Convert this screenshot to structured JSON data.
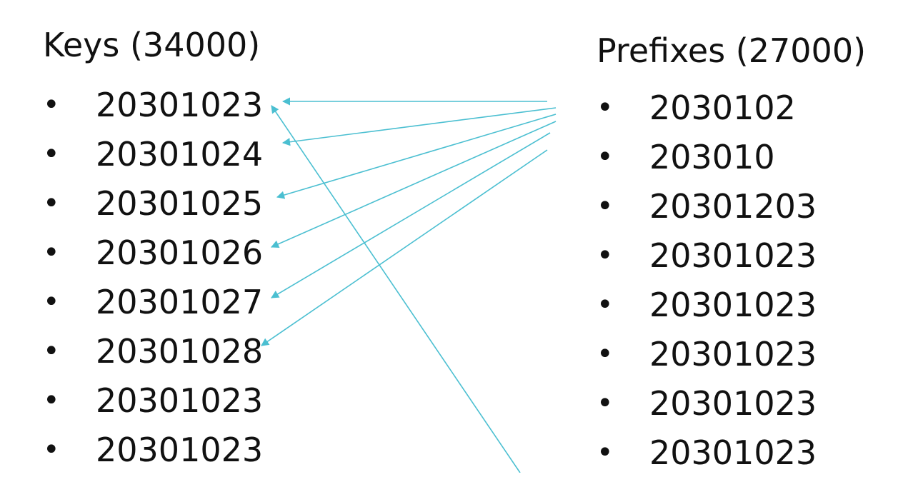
{
  "keys": {
    "title": "Keys (34000)",
    "items": [
      "20301023",
      "20301024",
      "20301025",
      "20301026",
      "20301027",
      "20301028",
      "20301023",
      "20301023"
    ]
  },
  "prefixes": {
    "title": "Prefixes (27000)",
    "items": [
      "2030102",
      "203010",
      "20301203",
      "20301023",
      "20301023",
      "20301023",
      "20301023",
      "20301023"
    ]
  },
  "bullet_glyph": "•",
  "arrow_color": "#4bbfd1"
}
